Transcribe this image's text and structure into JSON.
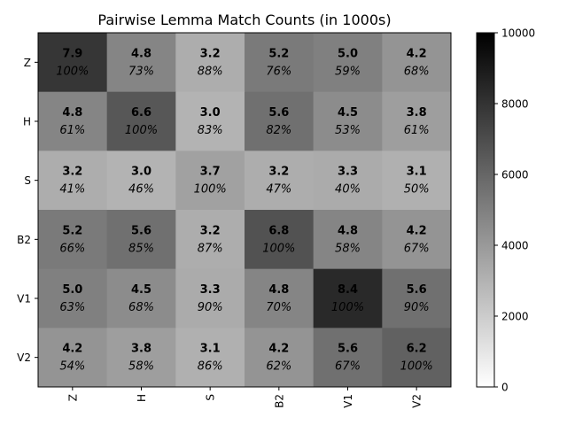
{
  "chart_data": {
    "type": "heatmap",
    "title": "Pairwise Lemma Match Counts (in 1000s)",
    "row_labels": [
      "Z",
      "H",
      "S",
      "B2",
      "V1",
      "V2"
    ],
    "col_labels": [
      "Z",
      "H",
      "S",
      "B2",
      "V1",
      "V2"
    ],
    "values": [
      [
        7.9,
        4.8,
        3.2,
        5.2,
        5.0,
        4.2
      ],
      [
        4.8,
        6.6,
        3.0,
        5.6,
        4.5,
        3.8
      ],
      [
        3.2,
        3.0,
        3.7,
        3.2,
        3.3,
        3.1
      ],
      [
        5.2,
        5.6,
        3.2,
        6.8,
        4.8,
        4.2
      ],
      [
        5.0,
        4.5,
        3.3,
        4.8,
        8.4,
        5.6
      ],
      [
        4.2,
        3.8,
        3.1,
        4.2,
        5.6,
        6.2
      ]
    ],
    "value_labels": [
      [
        "7.9",
        "4.8",
        "3.2",
        "5.2",
        "5.0",
        "4.2"
      ],
      [
        "4.8",
        "6.6",
        "3.0",
        "5.6",
        "4.5",
        "3.8"
      ],
      [
        "3.2",
        "3.0",
        "3.7",
        "3.2",
        "3.3",
        "3.1"
      ],
      [
        "5.2",
        "5.6",
        "3.2",
        "6.8",
        "4.8",
        "4.2"
      ],
      [
        "5.0",
        "4.5",
        "3.3",
        "4.8",
        "8.4",
        "5.6"
      ],
      [
        "4.2",
        "3.8",
        "3.1",
        "4.2",
        "5.6",
        "6.2"
      ]
    ],
    "percent_labels": [
      [
        "100%",
        "73%",
        "88%",
        "76%",
        "59%",
        "68%"
      ],
      [
        "61%",
        "100%",
        "83%",
        "82%",
        "53%",
        "61%"
      ],
      [
        "41%",
        "46%",
        "100%",
        "47%",
        "40%",
        "50%"
      ],
      [
        "66%",
        "85%",
        "87%",
        "100%",
        "58%",
        "67%"
      ],
      [
        "63%",
        "68%",
        "90%",
        "70%",
        "100%",
        "90%"
      ],
      [
        "54%",
        "58%",
        "86%",
        "62%",
        "67%",
        "100%"
      ]
    ],
    "colormap": "gray_r",
    "color_range": [
      0,
      10000
    ],
    "colorbar_ticks": [
      "0",
      "2000",
      "4000",
      "6000",
      "8000",
      "10000"
    ],
    "grid": false
  }
}
